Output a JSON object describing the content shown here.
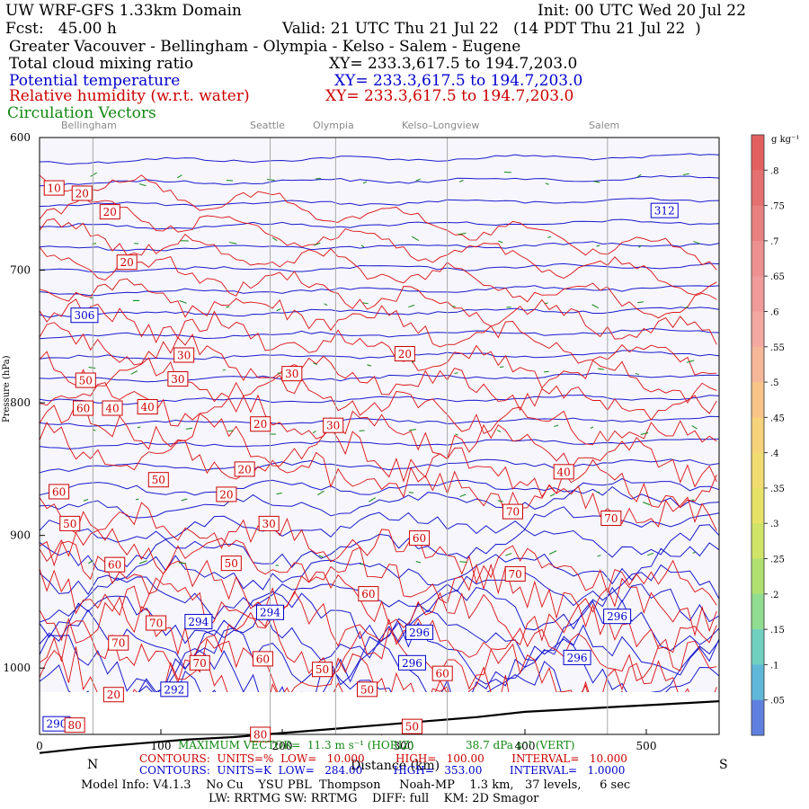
{
  "header": {
    "model": "UW WRF-GFS 1.33km Domain",
    "init": "Init: 00 UTC Wed 20 Jul 22",
    "fcst": "Fcst:   45.00 h",
    "valid": "Valid: 21 UTC Thu 21 Jul 22   (14 PDT Thu 21 Jul 22  )",
    "region": "Greater Vacouver - Bellingham - Olympia - Kelso - Salem - Eugene",
    "fields": [
      {
        "label": "Total cloud mixing ratio",
        "xy": "XY= 233.3,617.5 to 194.7,203.0",
        "color": "#000000"
      },
      {
        "label": "Potential temperature",
        "xy": "XY= 233.3,617.5 to 194.7,203.0",
        "color": "#0000cc"
      },
      {
        "label": "Relative humidity (w.r.t. water)",
        "xy": "XY= 233.3,617.5 to 194.7,203.0",
        "color": "#cc0000"
      },
      {
        "label": "Circulation Vectors",
        "xy": "",
        "color": "#118811"
      }
    ]
  },
  "cities": [
    {
      "name": "Bellingham",
      "km": 44
    },
    {
      "name": "Seattle",
      "km": 190
    },
    {
      "name": "Olympia",
      "km": 244
    },
    {
      "name": "Kelso–Longview",
      "km": 336
    },
    {
      "name": "Salem",
      "km": 468
    }
  ],
  "chart_data": {
    "type": "cross-section",
    "xlabel": "Distance (km)",
    "xlim": [
      0,
      560
    ],
    "ylim": [
      1050,
      600
    ],
    "x_ticks": [
      0,
      100,
      200,
      300,
      400,
      500
    ],
    "y_ticks": [
      600,
      700,
      800,
      900,
      1000
    ],
    "x_end_labels": {
      "left": "N",
      "right": "S"
    },
    "colorbar": {
      "unit": "g kg⁻¹",
      "ticks": [
        ".8",
        ".75",
        ".7",
        ".65",
        ".6",
        ".55",
        ".5",
        ".45",
        ".4",
        ".35",
        ".3",
        ".25",
        ".2",
        ".15",
        ".1",
        ".05"
      ]
    },
    "theta_labels": [
      {
        "value": "312",
        "km": 515,
        "p": 655
      },
      {
        "value": "306",
        "km": 37,
        "p": 734
      },
      {
        "value": "294",
        "km": 131,
        "p": 965
      },
      {
        "value": "294",
        "km": 190,
        "p": 958
      },
      {
        "value": "296",
        "km": 313,
        "p": 973
      },
      {
        "value": "296",
        "km": 476,
        "p": 961
      },
      {
        "value": "296",
        "km": 307,
        "p": 996
      },
      {
        "value": "296",
        "km": 443,
        "p": 992
      },
      {
        "value": "292",
        "km": 111,
        "p": 1016
      },
      {
        "value": "290",
        "km": 14,
        "p": 1042
      }
    ],
    "rh_labels": [
      {
        "value": "10",
        "km": 12,
        "p": 638
      },
      {
        "value": "20",
        "km": 35,
        "p": 642
      },
      {
        "value": "20",
        "km": 58,
        "p": 656
      },
      {
        "value": "20",
        "km": 72,
        "p": 694
      },
      {
        "value": "30",
        "km": 119,
        "p": 764
      },
      {
        "value": "30",
        "km": 114,
        "p": 782
      },
      {
        "value": "50",
        "km": 38,
        "p": 783
      },
      {
        "value": "60",
        "km": 36,
        "p": 804
      },
      {
        "value": "40",
        "km": 60,
        "p": 804
      },
      {
        "value": "40",
        "km": 89,
        "p": 803
      },
      {
        "value": "30",
        "km": 208,
        "p": 778
      },
      {
        "value": "20",
        "km": 301,
        "p": 763
      },
      {
        "value": "30",
        "km": 242,
        "p": 817
      },
      {
        "value": "20",
        "km": 182,
        "p": 816
      },
      {
        "value": "20",
        "km": 169,
        "p": 850
      },
      {
        "value": "20",
        "km": 154,
        "p": 869
      },
      {
        "value": "50",
        "km": 98,
        "p": 858
      },
      {
        "value": "60",
        "km": 16,
        "p": 867
      },
      {
        "value": "50",
        "km": 25,
        "p": 891
      },
      {
        "value": "40",
        "km": 432,
        "p": 852
      },
      {
        "value": "30",
        "km": 189,
        "p": 891
      },
      {
        "value": "70",
        "km": 390,
        "p": 882
      },
      {
        "value": "70",
        "km": 471,
        "p": 887
      },
      {
        "value": "60",
        "km": 62,
        "p": 922
      },
      {
        "value": "50",
        "km": 158,
        "p": 921
      },
      {
        "value": "60",
        "km": 313,
        "p": 902
      },
      {
        "value": "60",
        "km": 271,
        "p": 944
      },
      {
        "value": "70",
        "km": 392,
        "p": 929
      },
      {
        "value": "70",
        "km": 96,
        "p": 966
      },
      {
        "value": "70",
        "km": 65,
        "p": 981
      },
      {
        "value": "70",
        "km": 132,
        "p": 996
      },
      {
        "value": "60",
        "km": 184,
        "p": 993
      },
      {
        "value": "20",
        "km": 61,
        "p": 1020
      },
      {
        "value": "80",
        "km": 29,
        "p": 1043
      },
      {
        "value": "50",
        "km": 233,
        "p": 1001
      },
      {
        "value": "50",
        "km": 270,
        "p": 1016
      },
      {
        "value": "50",
        "km": 307,
        "p": 1044
      },
      {
        "value": "60",
        "km": 332,
        "p": 1004
      },
      {
        "value": "80",
        "km": 182,
        "p": 1050
      }
    ],
    "surface_pressure": [
      [
        0,
        1064
      ],
      [
        40,
        1060
      ],
      [
        80,
        1057
      ],
      [
        120,
        1054
      ],
      [
        160,
        1052
      ],
      [
        200,
        1049
      ],
      [
        240,
        1046
      ],
      [
        280,
        1043
      ],
      [
        320,
        1040
      ],
      [
        360,
        1037
      ],
      [
        400,
        1033
      ],
      [
        440,
        1031
      ],
      [
        480,
        1029
      ],
      [
        520,
        1027
      ],
      [
        560,
        1025
      ]
    ]
  },
  "footer": {
    "max_vector": "MAXIMUM VECTOR=  11.3 m s⁻¹ (HORIZ)",
    "max_vector_vert": "38.7 dPa s⁻¹ (VERT)",
    "rh_contours": "CONTOURS:  UNITS=%  LOW=   10.000         HIGH=   100.00        INTERVAL=   10.000",
    "theta_contours": "CONTOURS:  UNITS=K  LOW=   284.00         HIGH=   353.00        INTERVAL=   1.0000",
    "model_info": "Model Info: V4.1.3    No Cu    YSU PBL  Thompson     Noah-MP    1.3 km,   37 levels,     6 sec",
    "model_info2": "LW: RRTMG SW: RRTMG    DIFF: full    KM: 2D Smagor"
  }
}
